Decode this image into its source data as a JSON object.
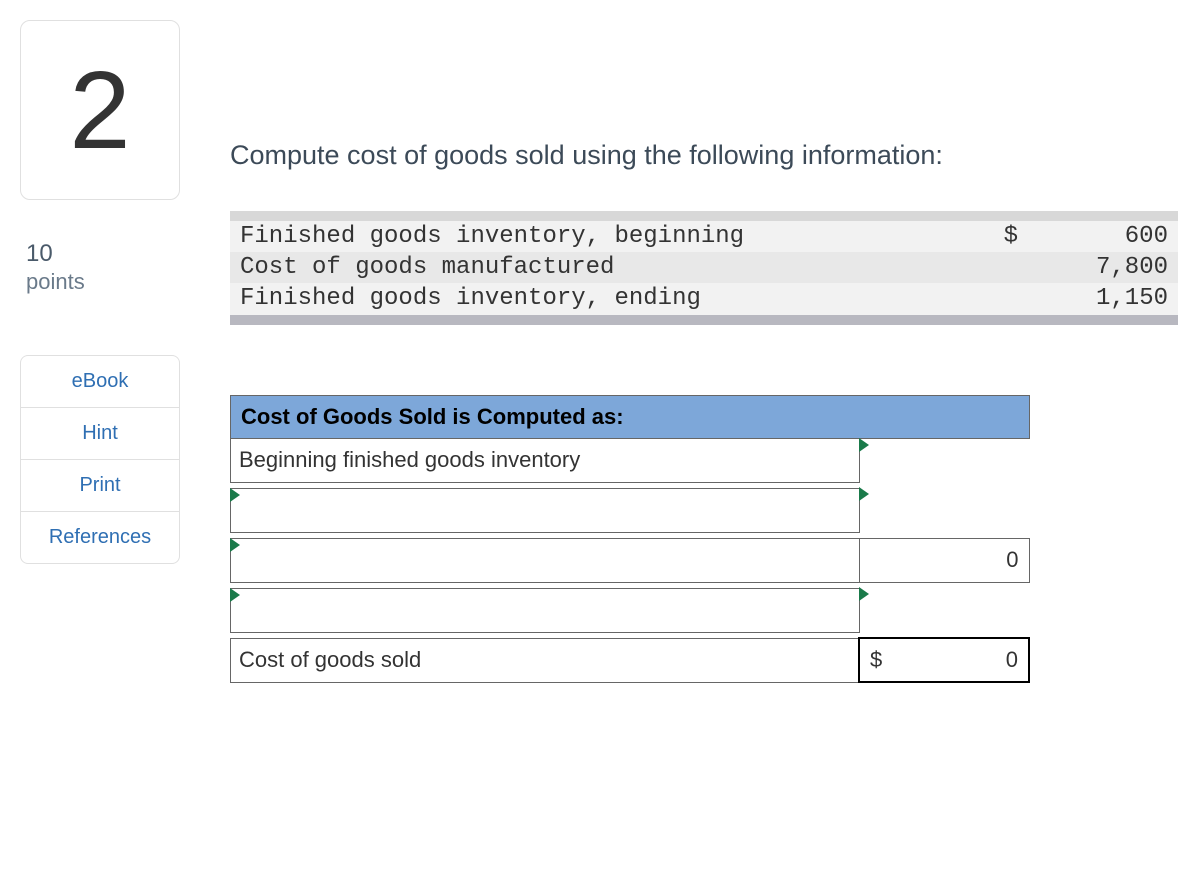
{
  "question": {
    "number": "2",
    "points_value": "10",
    "points_label": "points",
    "prompt": "Compute cost of goods sold using the following information:"
  },
  "nav": {
    "ebook": "eBook",
    "hint": "Hint",
    "print": "Print",
    "references": "References"
  },
  "info": {
    "rows": [
      {
        "label": "Finished goods inventory, beginning",
        "symbol": "$",
        "value": "600"
      },
      {
        "label": "Cost of goods manufactured",
        "symbol": "",
        "value": "7,800"
      },
      {
        "label": "Finished goods inventory, ending",
        "symbol": "",
        "value": "1,150"
      }
    ],
    "colors": {
      "bar_top": "#d8d8d8",
      "row_odd": "#f2f2f2",
      "row_even": "#e8e8e8",
      "bar_bottom": "#b8b8c0"
    },
    "font_family": "Courier New",
    "font_size_pt": 18
  },
  "calc": {
    "header": "Cost of Goods Sold is Computed as:",
    "header_bg": "#7da7d9",
    "marker_color": "#1a7a4a",
    "rows": [
      {
        "label": "Beginning finished goods inventory",
        "value": "",
        "label_editable": false,
        "value_blank": true
      },
      {
        "label": "",
        "value": "",
        "label_editable": true,
        "value_blank": true
      },
      {
        "label": "",
        "value": "0",
        "label_editable": true,
        "value_blank": false
      },
      {
        "label": "",
        "value": "",
        "label_editable": true,
        "value_blank": true
      }
    ],
    "total": {
      "label": "Cost of goods sold",
      "symbol": "$",
      "value": "0"
    }
  }
}
